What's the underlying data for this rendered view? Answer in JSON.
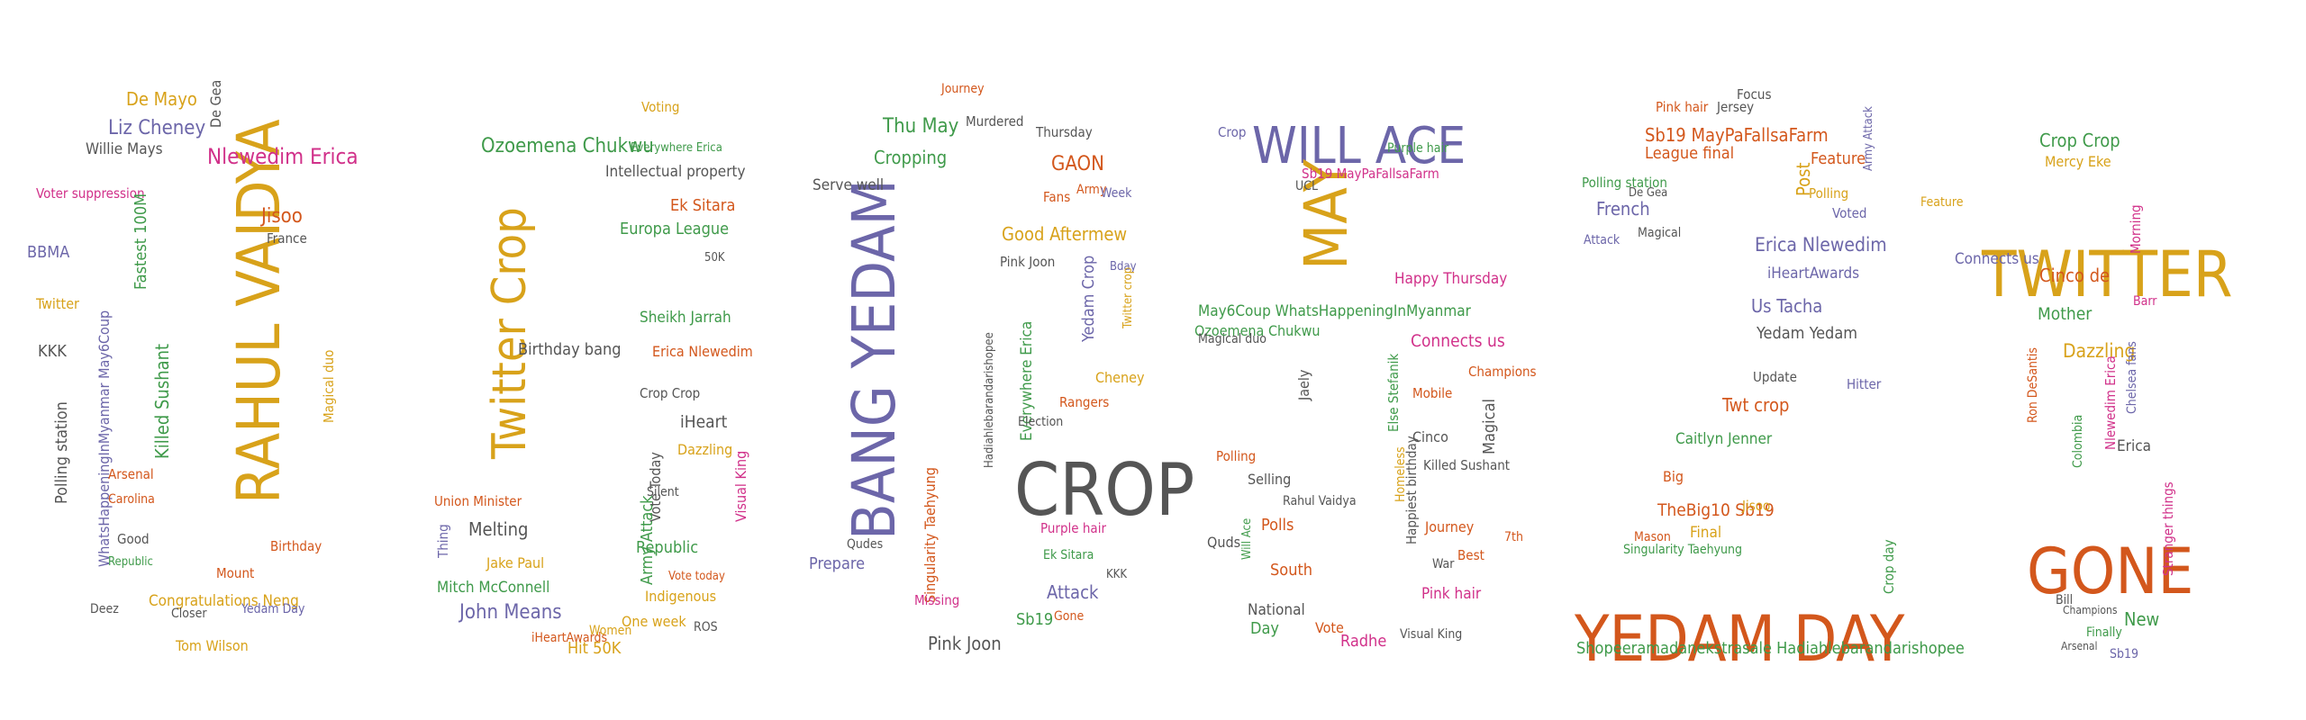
{
  "palette": {
    "gold": "#d8a21a",
    "purple": "#6c66a9",
    "orange": "#d3571c",
    "green": "#3f9a4a",
    "magenta": "#d1318a",
    "gray": "#555555"
  },
  "digits": [
    {
      "name": "digit-2",
      "words": [
        {
          "text": "RAHUL VAIDYA",
          "color": "gold"
        },
        {
          "text": "De Mayo",
          "color": "gold"
        },
        {
          "text": "Liz Cheney",
          "color": "purple"
        },
        {
          "text": "Willie Mays",
          "color": "gray"
        },
        {
          "text": "De Gea",
          "color": "gray"
        },
        {
          "text": "Nlewedim Erica",
          "color": "magenta"
        },
        {
          "text": "Voter suppression",
          "color": "magenta"
        },
        {
          "text": "Fastest 100M",
          "color": "green"
        },
        {
          "text": "BBMA",
          "color": "purple"
        },
        {
          "text": "Twitter",
          "color": "gold"
        },
        {
          "text": "KKK",
          "color": "gray"
        },
        {
          "text": "Polling station",
          "color": "gray"
        },
        {
          "text": "WhatsHappeningInMyanmar May6Coup",
          "color": "purple"
        },
        {
          "text": "Killed Sushant",
          "color": "green"
        },
        {
          "text": "Arsenal",
          "color": "orange"
        },
        {
          "text": "Carolina",
          "color": "orange"
        },
        {
          "text": "Congratulations Neng",
          "color": "gold"
        },
        {
          "text": "Tom Wilson",
          "color": "gold"
        },
        {
          "text": "Jisoo",
          "color": "orange"
        },
        {
          "text": "France",
          "color": "gray"
        },
        {
          "text": "Magical duo",
          "color": "gold"
        },
        {
          "text": "Birthday",
          "color": "orange"
        },
        {
          "text": "Yedam Day",
          "color": "purple"
        },
        {
          "text": "Closer",
          "color": "gray"
        },
        {
          "text": "Mount",
          "color": "orange"
        },
        {
          "text": "Deez",
          "color": "gray"
        },
        {
          "text": "Good",
          "color": "gray"
        },
        {
          "text": "Republic",
          "color": "green"
        }
      ]
    },
    {
      "name": "digit-6",
      "words": [
        {
          "text": "Twitter Crop",
          "color": "gold"
        },
        {
          "text": "Ozoemena Chukwu",
          "color": "green"
        },
        {
          "text": "Intellectual property",
          "color": "gray"
        },
        {
          "text": "Voting",
          "color": "gold"
        },
        {
          "text": "Everywhere Erica",
          "color": "green"
        },
        {
          "text": "Ek Sitara",
          "color": "orange"
        },
        {
          "text": "Europa League",
          "color": "green"
        },
        {
          "text": "50K",
          "color": "gray"
        },
        {
          "text": "Sheikh Jarrah",
          "color": "green"
        },
        {
          "text": "Birthday bang",
          "color": "gray"
        },
        {
          "text": "Erica Nlewedim",
          "color": "orange"
        },
        {
          "text": "iHeart",
          "color": "gray"
        },
        {
          "text": "Dazzling",
          "color": "gold"
        },
        {
          "text": "Vote Today",
          "color": "gray"
        },
        {
          "text": "Crop Crop",
          "color": "gray"
        },
        {
          "text": "Silent",
          "color": "gray"
        },
        {
          "text": "Visual King",
          "color": "magenta"
        },
        {
          "text": "Union Minister",
          "color": "orange"
        },
        {
          "text": "Melting",
          "color": "gray"
        },
        {
          "text": "Jake Paul",
          "color": "gold"
        },
        {
          "text": "Thing",
          "color": "purple"
        },
        {
          "text": "Mitch McConnell",
          "color": "green"
        },
        {
          "text": "John Means",
          "color": "purple"
        },
        {
          "text": "Army Attack",
          "color": "green"
        },
        {
          "text": "Republic",
          "color": "green"
        },
        {
          "text": "Vote today",
          "color": "orange"
        },
        {
          "text": "Indigenous",
          "color": "gold"
        },
        {
          "text": "One week",
          "color": "gold"
        },
        {
          "text": "Hit 50K",
          "color": "gold"
        },
        {
          "text": "iHeartAwards",
          "color": "orange"
        },
        {
          "text": "Women",
          "color": "gold"
        },
        {
          "text": "ROS",
          "color": "gray"
        }
      ]
    },
    {
      "name": "digit-0",
      "words": [
        {
          "text": "BANG YEDAM",
          "color": "purple"
        },
        {
          "text": "CROP",
          "color": "gray"
        },
        {
          "text": "Thu May",
          "color": "green"
        },
        {
          "text": "Cropping",
          "color": "green"
        },
        {
          "text": "Serve well",
          "color": "gray"
        },
        {
          "text": "Murdered",
          "color": "gray"
        },
        {
          "text": "Thursday",
          "color": "gray"
        },
        {
          "text": "GAON",
          "color": "orange"
        },
        {
          "text": "Fans",
          "color": "orange"
        },
        {
          "text": "Army",
          "color": "orange"
        },
        {
          "text": "Week",
          "color": "purple"
        },
        {
          "text": "Good Aftermew",
          "color": "gold"
        },
        {
          "text": "Pink Joon",
          "color": "gray"
        },
        {
          "text": "Yedam Crop",
          "color": "purple"
        },
        {
          "text": "Bday",
          "color": "purple"
        },
        {
          "text": "Everywhere Erica",
          "color": "green"
        },
        {
          "text": "Election",
          "color": "gray"
        },
        {
          "text": "Rangers",
          "color": "orange"
        },
        {
          "text": "Singularity Taehyung",
          "color": "orange"
        },
        {
          "text": "Hadiahlebarandarishopee",
          "color": "gray"
        },
        {
          "text": "Prepare",
          "color": "purple"
        },
        {
          "text": "Missing",
          "color": "magenta"
        },
        {
          "text": "Purple hair",
          "color": "magenta"
        },
        {
          "text": "Ek Sitara",
          "color": "green"
        },
        {
          "text": "Attack",
          "color": "purple"
        },
        {
          "text": "Sb19",
          "color": "green"
        },
        {
          "text": "Gone",
          "color": "orange"
        },
        {
          "text": "KKK",
          "color": "gray"
        },
        {
          "text": "Pink Joon",
          "color": "gray"
        },
        {
          "text": "Qudes",
          "color": "gray"
        },
        {
          "text": "Journey",
          "color": "orange"
        },
        {
          "text": "Cheney",
          "color": "gold"
        },
        {
          "text": "Twitter crop",
          "color": "gold"
        }
      ]
    },
    {
      "name": "digit-5",
      "words": [
        {
          "text": "WILL ACE",
          "color": "purple"
        },
        {
          "text": "MAY",
          "color": "gold"
        },
        {
          "text": "Sb19 MayPaFallsaFarm",
          "color": "magenta"
        },
        {
          "text": "UCL",
          "color": "gray"
        },
        {
          "text": "Crop",
          "color": "purple"
        },
        {
          "text": "Happy Thursday",
          "color": "magenta"
        },
        {
          "text": "May6Coup WhatsHappeningInMyanmar",
          "color": "green"
        },
        {
          "text": "Connects us",
          "color": "magenta"
        },
        {
          "text": "Ozoemena Chukwu",
          "color": "green"
        },
        {
          "text": "Jaely",
          "color": "gray"
        },
        {
          "text": "Champions",
          "color": "orange"
        },
        {
          "text": "Mobile",
          "color": "orange"
        },
        {
          "text": "Else Stefanik",
          "color": "green"
        },
        {
          "text": "Magical",
          "color": "gray"
        },
        {
          "text": "Cinco",
          "color": "gray"
        },
        {
          "text": "Killed Sushant",
          "color": "gray"
        },
        {
          "text": "Polling",
          "color": "orange"
        },
        {
          "text": "Selling",
          "color": "gray"
        },
        {
          "text": "Rahul Vaidya",
          "color": "gray"
        },
        {
          "text": "Polls",
          "color": "orange"
        },
        {
          "text": "Quds",
          "color": "gray"
        },
        {
          "text": "South",
          "color": "orange"
        },
        {
          "text": "Happiest birthday",
          "color": "gray"
        },
        {
          "text": "Journey",
          "color": "orange"
        },
        {
          "text": "War",
          "color": "gray"
        },
        {
          "text": "Best",
          "color": "orange"
        },
        {
          "text": "Pink hair",
          "color": "magenta"
        },
        {
          "text": "National",
          "color": "gray"
        },
        {
          "text": "Day",
          "color": "green"
        },
        {
          "text": "Vote",
          "color": "orange"
        },
        {
          "text": "Radhe",
          "color": "magenta"
        },
        {
          "text": "Visual King",
          "color": "gray"
        },
        {
          "text": "Homeless",
          "color": "gold"
        },
        {
          "text": "Will Ace",
          "color": "green"
        },
        {
          "text": "Magical duo",
          "color": "gray"
        },
        {
          "text": "Purple hair",
          "color": "green"
        },
        {
          "text": "7th",
          "color": "orange"
        }
      ]
    },
    {
      "name": "digit-3",
      "words": [
        {
          "text": "YEDAM DAY",
          "color": "orange"
        },
        {
          "text": "Sb19 MayPaFallsaFarm",
          "color": "orange"
        },
        {
          "text": "League final",
          "color": "orange"
        },
        {
          "text": "Pink hair",
          "color": "orange"
        },
        {
          "text": "Jersey",
          "color": "gray"
        },
        {
          "text": "Focus",
          "color": "gray"
        },
        {
          "text": "Polling station",
          "color": "green"
        },
        {
          "text": "De Gea",
          "color": "gray"
        },
        {
          "text": "French",
          "color": "purple"
        },
        {
          "text": "Attack",
          "color": "purple"
        },
        {
          "text": "Magical",
          "color": "gray"
        },
        {
          "text": "Post",
          "color": "gold"
        },
        {
          "text": "Feature",
          "color": "orange"
        },
        {
          "text": "Polling",
          "color": "gold"
        },
        {
          "text": "Voted",
          "color": "purple"
        },
        {
          "text": "Erica Nlewedim",
          "color": "purple"
        },
        {
          "text": "iHeartAwards",
          "color": "purple"
        },
        {
          "text": "Army Attack",
          "color": "purple"
        },
        {
          "text": "Us Tacha",
          "color": "purple"
        },
        {
          "text": "Yedam Yedam",
          "color": "gray"
        },
        {
          "text": "Update",
          "color": "gray"
        },
        {
          "text": "Hitter",
          "color": "purple"
        },
        {
          "text": "Twt crop",
          "color": "orange"
        },
        {
          "text": "Caitlyn Jenner",
          "color": "green"
        },
        {
          "text": "Big",
          "color": "orange"
        },
        {
          "text": "TheBig10 Sb19",
          "color": "orange"
        },
        {
          "text": "Final",
          "color": "gold"
        },
        {
          "text": "Mason",
          "color": "orange"
        },
        {
          "text": "Singularity Taehyung",
          "color": "green"
        },
        {
          "text": "Jisoo",
          "color": "gold"
        },
        {
          "text": "Crop day",
          "color": "green"
        },
        {
          "text": "Shopeeramadanekstrasale Hadiahlebarandarishopee",
          "color": "green"
        }
      ]
    },
    {
      "name": "digit-1",
      "words": [
        {
          "text": "TWITTER",
          "color": "gold"
        },
        {
          "text": "GONE",
          "color": "orange"
        },
        {
          "text": "Crop Crop",
          "color": "green"
        },
        {
          "text": "Mercy Eke",
          "color": "gold"
        },
        {
          "text": "Feature",
          "color": "gold"
        },
        {
          "text": "Connects us",
          "color": "purple"
        },
        {
          "text": "Cinco de",
          "color": "orange"
        },
        {
          "text": "Mother",
          "color": "green"
        },
        {
          "text": "Dazzling",
          "color": "gold"
        },
        {
          "text": "Ron DeSantis",
          "color": "orange"
        },
        {
          "text": "Nlewedim Erica",
          "color": "magenta"
        },
        {
          "text": "Chelsea fans",
          "color": "purple"
        },
        {
          "text": "Colombia",
          "color": "green"
        },
        {
          "text": "Erica",
          "color": "gray"
        },
        {
          "text": "Stranger things",
          "color": "magenta"
        },
        {
          "text": "New",
          "color": "green"
        },
        {
          "text": "Finally",
          "color": "green"
        },
        {
          "text": "Bill",
          "color": "gray"
        },
        {
          "text": "Sb19",
          "color": "purple"
        },
        {
          "text": "Champions",
          "color": "gray"
        },
        {
          "text": "Barr",
          "color": "magenta"
        },
        {
          "text": "Morning",
          "color": "magenta"
        },
        {
          "text": "Arsenal",
          "color": "gray"
        }
      ]
    }
  ]
}
